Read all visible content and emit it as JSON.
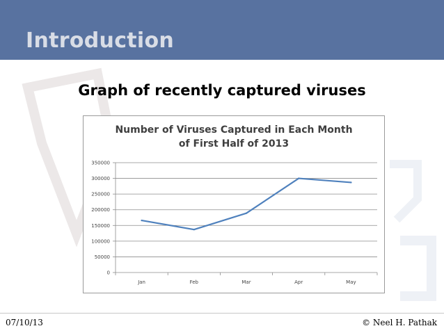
{
  "header": {
    "title": "Introduction"
  },
  "slide": {
    "subtitle": "Graph of recently captured viruses"
  },
  "footer": {
    "date": "07/10/13",
    "author": "© Neel H. Pathak"
  },
  "colors": {
    "header_bg": "#5872a0",
    "line": "#4f81bd"
  },
  "chart_data": {
    "type": "line",
    "title_lines": [
      "Number of Viruses Captured in Each Month",
      "of First Half of 2013"
    ],
    "categories": [
      "Jan",
      "Feb",
      "Mar",
      "Apr",
      "May"
    ],
    "series": [
      {
        "values": [
          166000,
          137000,
          189000,
          300000,
          287000
        ]
      }
    ],
    "ylim": [
      0,
      350000
    ],
    "yticks": [
      0,
      50000,
      100000,
      150000,
      200000,
      250000,
      300000,
      350000
    ],
    "xlabel": "",
    "ylabel": "",
    "grid": true,
    "legend": "none"
  }
}
